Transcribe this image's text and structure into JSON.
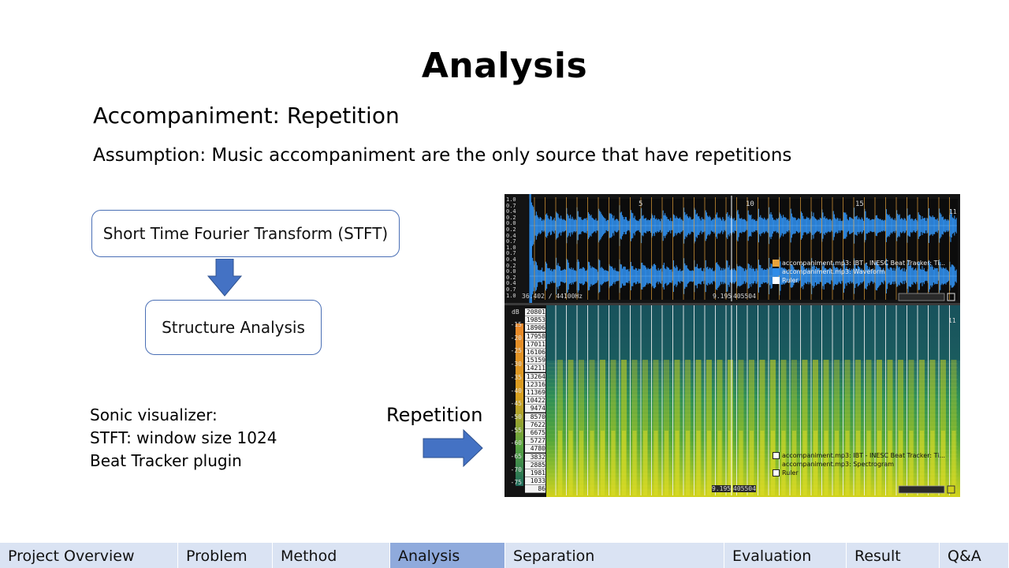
{
  "slide": {
    "title": "Analysis",
    "subtitle": "Accompaniment: Repetition",
    "assumption": "Assumption: Music accompaniment are the only source that have repetitions"
  },
  "flowchart": {
    "step1": "Short Time Fourier Transform (STFT)",
    "step2": "Structure Analysis"
  },
  "notes": [
    "Sonic visualizer:",
    "STFT: window size 1024",
    "Beat Tracker plugin"
  ],
  "arrow_label": "Repetition",
  "visualizer": {
    "waveform": {
      "scale_labels": [
        "1.0",
        "0.7",
        "0.4",
        "0.2",
        "0.0",
        "0.2",
        "0.4",
        "0.7",
        "1.0",
        "0.7",
        "0.4",
        "0.2",
        "0.0",
        "0.2",
        "0.4",
        "0.7",
        "1.0"
      ],
      "time_markers": [
        "5",
        "10",
        "15",
        "11"
      ],
      "position_left": "36.402 / 44100Hz",
      "position_right_a": "9.195",
      "position_right_b": "405504",
      "legend": [
        {
          "text": "accompaniment.mp3: IBT - INESC Beat Tracker: Ti...",
          "color": "#e8a33a"
        },
        {
          "text": "accompaniment.mp3: Waveform",
          "color": "#2f8ce8"
        },
        {
          "text": "Ruler",
          "color": "#ffffff"
        }
      ]
    },
    "spectrogram": {
      "db_unit": "dB",
      "db_labels": [
        "-15",
        "-20",
        "-25",
        "-30",
        "-35",
        "-40",
        "-45",
        "-50",
        "-55",
        "-60",
        "-65",
        "-70",
        "-75"
      ],
      "freq_labels": [
        "20801",
        "19853",
        "18906",
        "17958",
        "17011",
        "16106",
        "15159",
        "14211",
        "13264",
        "12316",
        "11369",
        "10422",
        "9474",
        "8570",
        "7622",
        "6675",
        "5727",
        "4780",
        "3832",
        "2885",
        "1981",
        "1033",
        "86"
      ],
      "time_marker": "11",
      "position_a": "9.195",
      "position_b": "405504",
      "legend": [
        {
          "text": "accompaniment.mp3: IBT - INESC Beat Tracker: Ti...",
          "color": "#ffffff"
        },
        {
          "text": "accompaniment.mp3: Spectrogram",
          "color": "#ffffff"
        },
        {
          "text": "Ruler",
          "color": "#ffffff"
        }
      ]
    }
  },
  "nav": {
    "tabs": [
      "Project Overview",
      "Problem",
      "Method",
      "Analysis",
      "Separation",
      "Evaluation",
      "Result",
      "Q&A"
    ],
    "active": "Analysis"
  },
  "colors": {
    "accent_blue": "#4472c4",
    "nav_bg": "#dae3f3",
    "nav_active": "#8faadc",
    "waveform": "#2f8ce8",
    "beat_line": "#e8a33a"
  }
}
